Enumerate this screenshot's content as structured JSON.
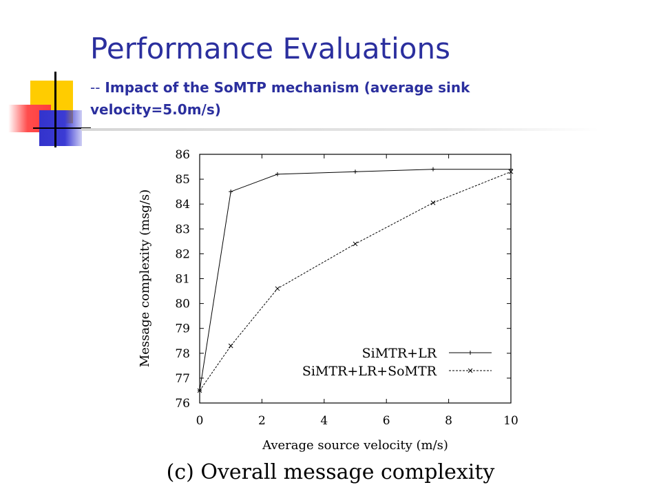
{
  "slide": {
    "title": "Performance Evaluations",
    "subtitle_prefix": "--",
    "subtitle": "Impact of the SoMTP mechanism (average sink velocity=5.0m/s)",
    "accent_color": "#2b2f9e"
  },
  "chart_data": {
    "type": "line",
    "caption": "(c) Overall message complexity",
    "xlabel": "Average source velocity (m/s)",
    "ylabel": "Message complexity (msg/s)",
    "xlim": [
      0,
      10
    ],
    "ylim": [
      76,
      86
    ],
    "x_ticks": [
      "0",
      "2",
      "4",
      "6",
      "8",
      "10"
    ],
    "y_ticks": [
      "76",
      "77",
      "78",
      "79",
      "80",
      "81",
      "82",
      "83",
      "84",
      "85",
      "86"
    ],
    "grid": false,
    "legend_position": "bottom-right",
    "series": [
      {
        "name": "SiMTR+LR",
        "marker": "plus",
        "line_style": "solid",
        "x": [
          0,
          1,
          2.5,
          5,
          7.5,
          10
        ],
        "values": [
          76.5,
          84.5,
          85.2,
          85.3,
          85.4,
          85.4
        ]
      },
      {
        "name": "SiMTR+LR+SoMTR",
        "marker": "cross",
        "line_style": "dashed",
        "x": [
          0,
          1,
          2.5,
          5,
          7.5,
          10
        ],
        "values": [
          76.5,
          78.3,
          80.6,
          82.4,
          84.05,
          85.3
        ]
      }
    ]
  }
}
